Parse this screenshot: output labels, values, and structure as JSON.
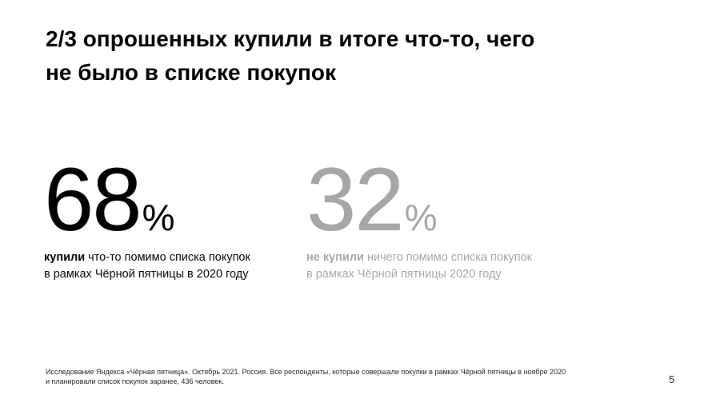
{
  "slide": {
    "title_line1": "2/3 опрошенных купили в итоге что-то, чего",
    "title_line2": "не было в списке покупок",
    "stats": [
      {
        "value": "68",
        "unit": "%",
        "bold": "купили",
        "rest": " что-то помимо списка покупок",
        "line2": "в рамках Чёрной пятницы в 2020 году",
        "color": "#000000"
      },
      {
        "value": "32",
        "unit": "%",
        "bold": "не купили",
        "rest": " ничего помимо списка покупок",
        "line2": "в рамках Чёрной пятницы 2020 году",
        "color": "#a6a6a6"
      }
    ],
    "footnote_line1": "Исследование Яндекса «Чёрная пятница». Октябрь 2021. Россия. Все респонденты, которые совершали покупки в рамках Чёрной пятницы в ноябре 2020",
    "footnote_line2": "и планировали список покупок заранее, 436 человек.",
    "page_number": "5"
  }
}
